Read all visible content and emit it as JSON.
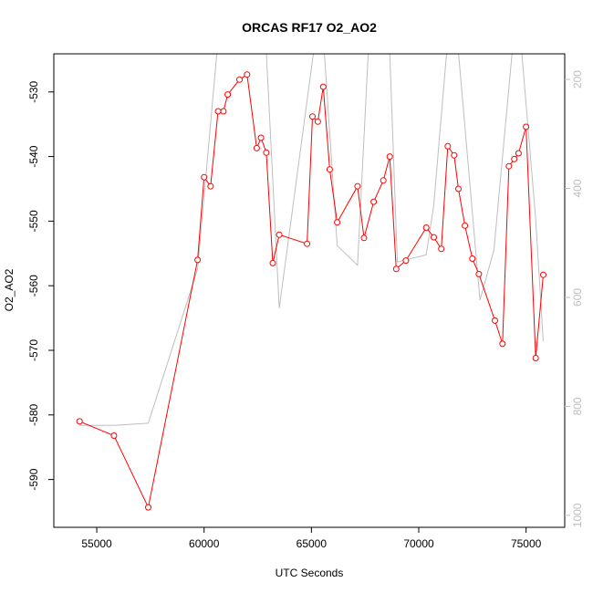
{
  "chart_data": {
    "type": "line",
    "title": "ORCAS RF17 O2_AO2",
    "xlabel": "UTC Seconds",
    "ylabel": "O2_AO2",
    "xlim": [
      53000,
      76800
    ],
    "ylim": [
      -597.4,
      -524.1
    ],
    "y2lim": [
      1022,
      153
    ],
    "x_ticks": [
      55000,
      60000,
      65000,
      70000,
      75000
    ],
    "y_ticks": [
      -590,
      -580,
      -570,
      -560,
      -550,
      -540,
      -530
    ],
    "y2_ticks": [
      200,
      400,
      600,
      800,
      1000
    ],
    "x_tick_labels": [
      "55000",
      "60000",
      "65000",
      "70000",
      "75000"
    ],
    "y_tick_labels": [
      "-590",
      "-580",
      "-570",
      "-560",
      "-550",
      "-540",
      "-530"
    ],
    "y2_tick_labels": [
      "200",
      "400",
      "600",
      "800",
      "1000"
    ],
    "colors": {
      "primary": "#ff0000",
      "secondary": "#bebebe",
      "axis": "#000000"
    },
    "series": [
      {
        "color": "#ff0000",
        "style": "line+points",
        "axis": "left",
        "x": [
          54200,
          55800,
          57400,
          59700,
          60000,
          60300,
          60650,
          60900,
          61100,
          61650,
          62000,
          62450,
          62650,
          62900,
          63200,
          63500,
          64800,
          65050,
          65300,
          65550,
          65850,
          66200,
          67150,
          67450,
          67900,
          68350,
          68650,
          68950,
          69400,
          70350,
          70700,
          71050,
          71350,
          71650,
          71850,
          72150,
          72500,
          72800,
          73550,
          73900,
          74200,
          74450,
          74650,
          75000,
          75450,
          75800
        ],
        "y": [
          -581.0,
          -583.2,
          -594.3,
          -556.0,
          -543.2,
          -544.6,
          -533.0,
          -533.0,
          -530.4,
          -528.1,
          -527.3,
          -538.7,
          -537.1,
          -539.4,
          -556.5,
          -552.1,
          -553.5,
          -533.8,
          -534.6,
          -529.2,
          -542.0,
          -550.2,
          -544.6,
          -552.6,
          -547.0,
          -543.7,
          -540.0,
          -557.4,
          -556.1,
          -551.0,
          -552.5,
          -554.3,
          -538.4,
          -539.8,
          -545.0,
          -550.7,
          -555.8,
          -558.2,
          -565.4,
          -569.0,
          -541.5,
          -540.4,
          -539.5,
          -535.4,
          -571.2,
          -558.3
        ]
      },
      {
        "color": "#bebebe",
        "style": "line",
        "axis": "right",
        "x": [
          54200,
          55800,
          57400,
          59700,
          60600,
          61500,
          62000,
          62900,
          63500,
          65100,
          65600,
          66200,
          67150,
          67650,
          68050,
          68650,
          69000,
          70350,
          70700,
          71300,
          71850,
          72850,
          73500,
          74350,
          74800,
          75450,
          75800
        ],
        "y": [
          835,
          835,
          831,
          548,
          150,
          150,
          150,
          150,
          620,
          150,
          150,
          505,
          541,
          150,
          150,
          150,
          535,
          522,
          430,
          150,
          150,
          605,
          513,
          150,
          150,
          457,
          681
        ]
      }
    ],
    "grid": false,
    "legend": "none"
  }
}
